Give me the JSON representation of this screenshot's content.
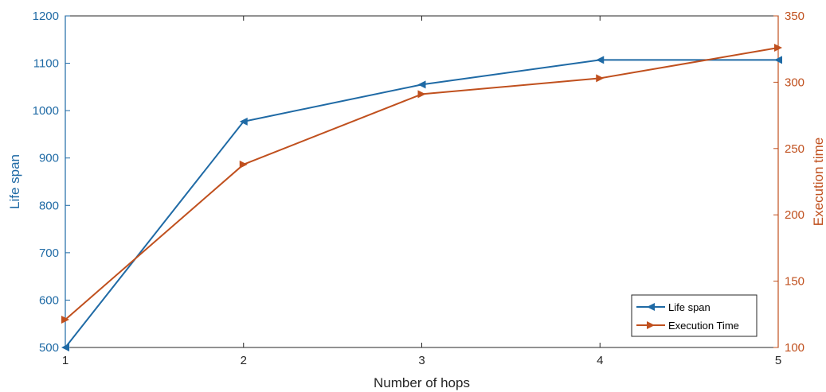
{
  "chart_data": {
    "type": "line",
    "xlabel": "Number of hops",
    "ylabel_left": "Life span",
    "ylabel_right": "Execution time",
    "x": [
      1,
      2,
      3,
      4,
      5
    ],
    "xlim": [
      1,
      5
    ],
    "ylim_left": [
      500,
      1200
    ],
    "ylim_right": [
      100,
      350
    ],
    "x_ticks": [
      1,
      2,
      3,
      4,
      5
    ],
    "y_ticks_left": [
      500,
      600,
      700,
      800,
      900,
      1000,
      1100,
      1200
    ],
    "y_ticks_right": [
      100,
      150,
      200,
      250,
      300,
      350
    ],
    "grid": false,
    "legend_position": "bottom-right",
    "series": [
      {
        "name": "Life span",
        "axis": "left",
        "color": "#1f6aa5",
        "marker": "triangle-left",
        "values": [
          500,
          977,
          1055,
          1107,
          1107
        ]
      },
      {
        "name": "Execution Time",
        "axis": "right",
        "color": "#c0501e",
        "marker": "triangle-right",
        "values": [
          121,
          238,
          291,
          303,
          326
        ]
      }
    ]
  }
}
